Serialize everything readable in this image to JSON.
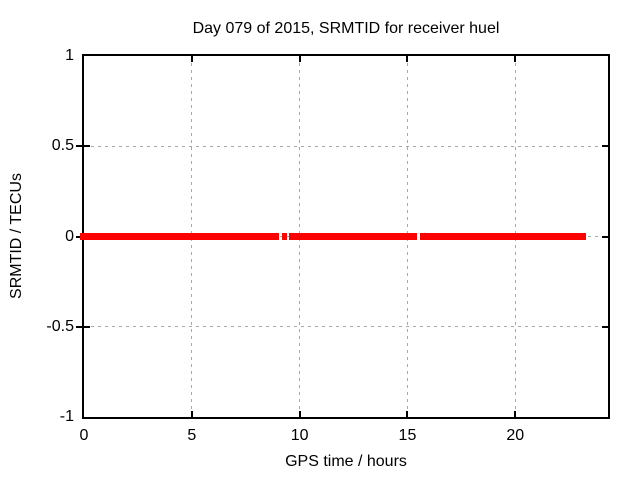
{
  "chart_data": {
    "type": "line",
    "title": "Day 079 of 2015, SRMTID for receiver huel",
    "xlabel": "GPS time / hours",
    "ylabel": "SRMTID / TECUs",
    "xlim": [
      0,
      24.3
    ],
    "ylim": [
      -1,
      1
    ],
    "xticks": [
      0,
      5,
      10,
      15,
      20
    ],
    "yticks": [
      -1,
      -0.5,
      0,
      0.5,
      1
    ],
    "grid": "dashed, at every tick",
    "legend": "none",
    "series": [
      {
        "name": "SRMTID",
        "color": "#ff0000",
        "constant_y_value": 0,
        "style": "thick horizontal line at y=0 with small data gaps",
        "segments_hours": [
          [
            0,
            9.05
          ],
          [
            9.2,
            9.4
          ],
          [
            9.5,
            15.45
          ],
          [
            15.6,
            23.3
          ]
        ]
      }
    ],
    "colors": {
      "background": "#ffffff",
      "grid": "#a8a8a8",
      "axis": "#000000",
      "text": "#000000",
      "series": "#ff0000"
    }
  }
}
